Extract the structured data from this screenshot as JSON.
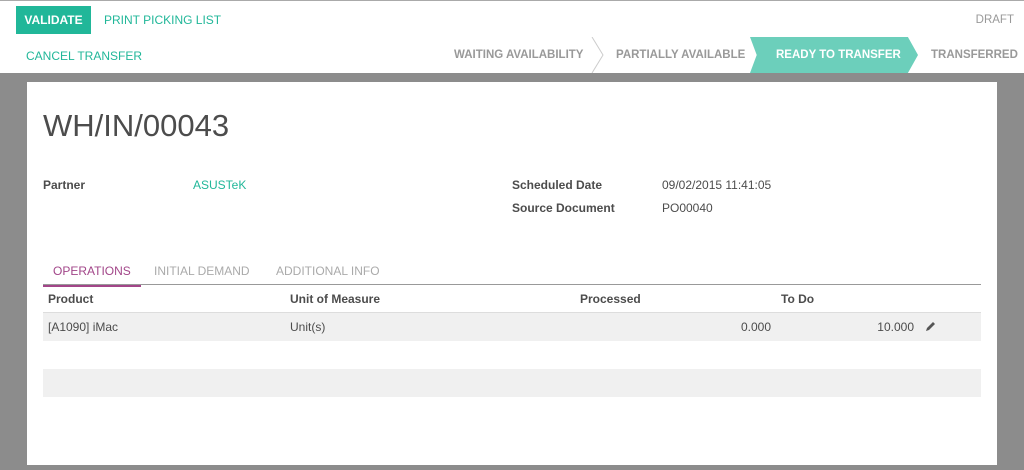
{
  "toolbar": {
    "validate": "VALIDATE",
    "print": "PRINT PICKING LIST",
    "cancel": "CANCEL TRANSFER",
    "state": "DRAFT"
  },
  "statusbar": [
    {
      "label": "WAITING AVAILABILITY",
      "active": false
    },
    {
      "label": "PARTIALLY AVAILABLE",
      "active": false
    },
    {
      "label": "READY TO TRANSFER",
      "active": true
    },
    {
      "label": "TRANSFERRED",
      "active": false
    }
  ],
  "colors": {
    "primary": "#21b799",
    "active_status": "#6ccfbb",
    "active_tab": "#a24689"
  },
  "form": {
    "title": "WH/IN/00043",
    "partner_label": "Partner",
    "partner": "ASUSTeK",
    "scheduled_label": "Scheduled Date",
    "scheduled": "09/02/2015 11:41:05",
    "source_label": "Source Document",
    "source": "PO00040"
  },
  "tabs": [
    "OPERATIONS",
    "INITIAL DEMAND",
    "ADDITIONAL INFO"
  ],
  "table": {
    "headers": [
      "Product",
      "Unit of Measure",
      "Processed",
      "To Do"
    ],
    "rows": [
      {
        "product": "[A1090] iMac",
        "uom": "Unit(s)",
        "processed": "0.000",
        "todo": "10.000",
        "icon": "pencil-icon"
      }
    ]
  }
}
